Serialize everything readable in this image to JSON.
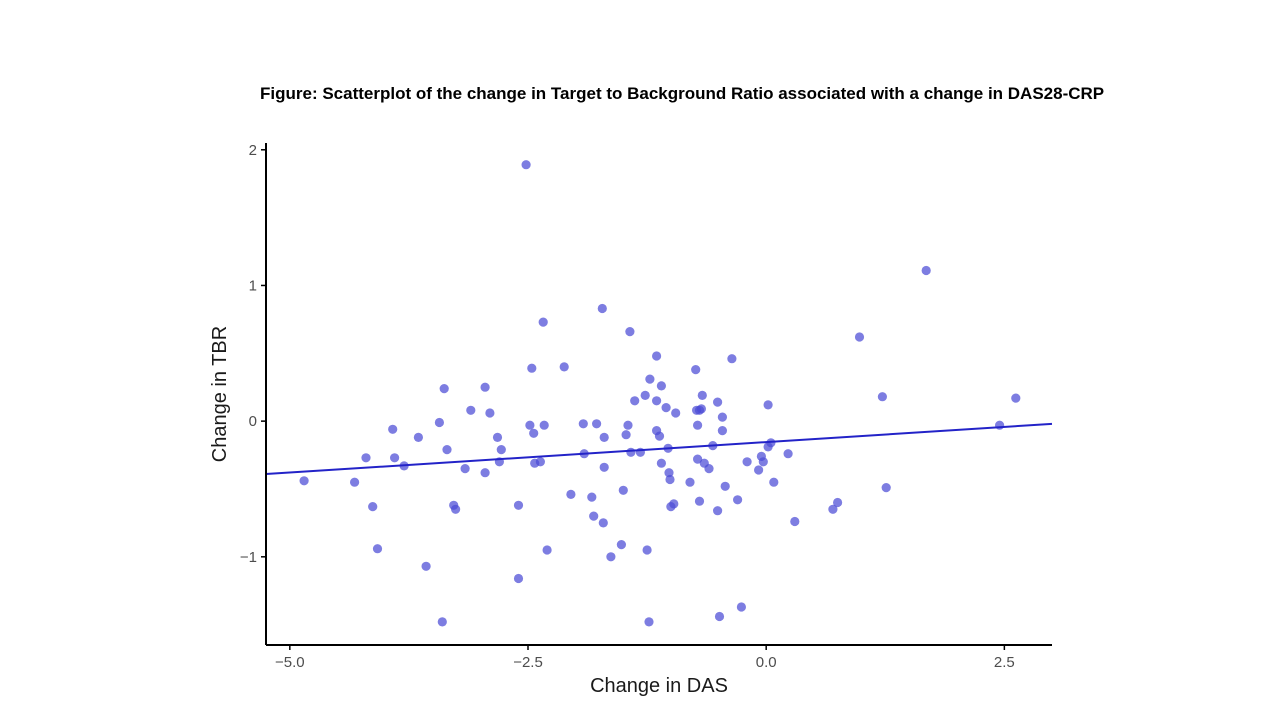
{
  "figure_title": "Figure: Scatterplot of the change in Target to Background  Ratio associated with a change in DAS28-CRP",
  "colors": {
    "points": "#4b4bd6",
    "trend_line": "#2323c8",
    "axis": "#000000"
  },
  "chart_data": {
    "type": "scatter",
    "title": "Figure: Scatterplot of the change in Target to Background  Ratio associated with a change in DAS28-CRP",
    "xlabel": "Change in DAS",
    "ylabel": "Change in TBR",
    "xlim": [
      -5.25,
      3.0
    ],
    "ylim": [
      -1.65,
      2.05
    ],
    "xticks": [
      -5.0,
      -2.5,
      0.0,
      2.5
    ],
    "xtick_labels": [
      "−5.0",
      "−2.5",
      "0.0",
      "2.5"
    ],
    "yticks": [
      -1,
      0,
      1,
      2
    ],
    "ytick_labels": [
      "−1",
      "0",
      "1",
      "2"
    ],
    "grid": false,
    "trend_line": {
      "x": [
        -5.25,
        3.0
      ],
      "y": [
        -0.39,
        -0.02
      ]
    },
    "points": [
      {
        "x": -4.85,
        "y": -0.44
      },
      {
        "x": -4.32,
        "y": -0.45
      },
      {
        "x": -4.2,
        "y": -0.27
      },
      {
        "x": -4.13,
        "y": -0.63
      },
      {
        "x": -4.08,
        "y": -0.94
      },
      {
        "x": -3.92,
        "y": -0.06
      },
      {
        "x": -3.9,
        "y": -0.27
      },
      {
        "x": -3.8,
        "y": -0.33
      },
      {
        "x": -3.65,
        "y": -0.12
      },
      {
        "x": -3.57,
        "y": -1.07
      },
      {
        "x": -3.43,
        "y": -0.01
      },
      {
        "x": -3.4,
        "y": -1.48
      },
      {
        "x": -3.38,
        "y": 0.24
      },
      {
        "x": -3.35,
        "y": -0.21
      },
      {
        "x": -3.28,
        "y": -0.62
      },
      {
        "x": -3.26,
        "y": -0.65
      },
      {
        "x": -3.16,
        "y": -0.35
      },
      {
        "x": -3.1,
        "y": 0.08
      },
      {
        "x": -2.95,
        "y": 0.25
      },
      {
        "x": -2.95,
        "y": -0.38
      },
      {
        "x": -2.9,
        "y": 0.06
      },
      {
        "x": -2.82,
        "y": -0.12
      },
      {
        "x": -2.8,
        "y": -0.3
      },
      {
        "x": -2.78,
        "y": -0.21
      },
      {
        "x": -2.6,
        "y": -0.62
      },
      {
        "x": -2.6,
        "y": -1.16
      },
      {
        "x": -2.52,
        "y": 1.89
      },
      {
        "x": -2.48,
        "y": -0.03
      },
      {
        "x": -2.46,
        "y": 0.39
      },
      {
        "x": -2.44,
        "y": -0.09
      },
      {
        "x": -2.43,
        "y": -0.31
      },
      {
        "x": -2.37,
        "y": -0.3
      },
      {
        "x": -2.34,
        "y": 0.73
      },
      {
        "x": -2.33,
        "y": -0.03
      },
      {
        "x": -2.3,
        "y": -0.95
      },
      {
        "x": -2.12,
        "y": 0.4
      },
      {
        "x": -2.05,
        "y": -0.54
      },
      {
        "x": -1.92,
        "y": -0.02
      },
      {
        "x": -1.91,
        "y": -0.24
      },
      {
        "x": -1.83,
        "y": -0.56
      },
      {
        "x": -1.81,
        "y": -0.7
      },
      {
        "x": -1.78,
        "y": -0.02
      },
      {
        "x": -1.72,
        "y": 0.83
      },
      {
        "x": -1.71,
        "y": -0.75
      },
      {
        "x": -1.7,
        "y": -0.12
      },
      {
        "x": -1.7,
        "y": -0.34
      },
      {
        "x": -1.63,
        "y": -1.0
      },
      {
        "x": -1.52,
        "y": -0.91
      },
      {
        "x": -1.5,
        "y": -0.51
      },
      {
        "x": -1.47,
        "y": -0.1
      },
      {
        "x": -1.45,
        "y": -0.03
      },
      {
        "x": -1.43,
        "y": 0.66
      },
      {
        "x": -1.42,
        "y": -0.23
      },
      {
        "x": -1.38,
        "y": 0.15
      },
      {
        "x": -1.32,
        "y": -0.23
      },
      {
        "x": -1.27,
        "y": 0.19
      },
      {
        "x": -1.25,
        "y": -0.95
      },
      {
        "x": -1.23,
        "y": -1.48
      },
      {
        "x": -1.22,
        "y": 0.31
      },
      {
        "x": -1.15,
        "y": 0.48
      },
      {
        "x": -1.15,
        "y": 0.15
      },
      {
        "x": -1.15,
        "y": -0.07
      },
      {
        "x": -1.12,
        "y": -0.11
      },
      {
        "x": -1.1,
        "y": 0.26
      },
      {
        "x": -1.1,
        "y": -0.31
      },
      {
        "x": -1.05,
        "y": 0.1
      },
      {
        "x": -1.03,
        "y": -0.2
      },
      {
        "x": -1.02,
        "y": -0.38
      },
      {
        "x": -1.01,
        "y": -0.43
      },
      {
        "x": -1.0,
        "y": -0.63
      },
      {
        "x": -0.97,
        "y": -0.61
      },
      {
        "x": -0.95,
        "y": 0.06
      },
      {
        "x": -0.8,
        "y": -0.45
      },
      {
        "x": -0.74,
        "y": 0.38
      },
      {
        "x": -0.73,
        "y": 0.08
      },
      {
        "x": -0.72,
        "y": -0.03
      },
      {
        "x": -0.72,
        "y": -0.28
      },
      {
        "x": -0.7,
        "y": 0.08
      },
      {
        "x": -0.7,
        "y": -0.59
      },
      {
        "x": -0.68,
        "y": 0.09
      },
      {
        "x": -0.67,
        "y": 0.19
      },
      {
        "x": -0.65,
        "y": -0.31
      },
      {
        "x": -0.6,
        "y": -0.35
      },
      {
        "x": -0.56,
        "y": -0.18
      },
      {
        "x": -0.51,
        "y": 0.14
      },
      {
        "x": -0.51,
        "y": -0.66
      },
      {
        "x": -0.49,
        "y": -1.44
      },
      {
        "x": -0.46,
        "y": 0.03
      },
      {
        "x": -0.46,
        "y": -0.07
      },
      {
        "x": -0.43,
        "y": -0.48
      },
      {
        "x": -0.36,
        "y": 0.46
      },
      {
        "x": -0.3,
        "y": -0.58
      },
      {
        "x": -0.26,
        "y": -1.37
      },
      {
        "x": -0.2,
        "y": -0.3
      },
      {
        "x": -0.08,
        "y": -0.36
      },
      {
        "x": -0.05,
        "y": -0.26
      },
      {
        "x": -0.03,
        "y": -0.3
      },
      {
        "x": 0.02,
        "y": 0.12
      },
      {
        "x": 0.02,
        "y": -0.19
      },
      {
        "x": 0.05,
        "y": -0.16
      },
      {
        "x": 0.08,
        "y": -0.45
      },
      {
        "x": 0.23,
        "y": -0.24
      },
      {
        "x": 0.3,
        "y": -0.74
      },
      {
        "x": 0.7,
        "y": -0.65
      },
      {
        "x": 0.75,
        "y": -0.6
      },
      {
        "x": 0.98,
        "y": 0.62
      },
      {
        "x": 1.22,
        "y": 0.18
      },
      {
        "x": 1.26,
        "y": -0.49
      },
      {
        "x": 1.68,
        "y": 1.11
      },
      {
        "x": 2.45,
        "y": -0.03
      },
      {
        "x": 2.62,
        "y": 0.17
      }
    ]
  }
}
